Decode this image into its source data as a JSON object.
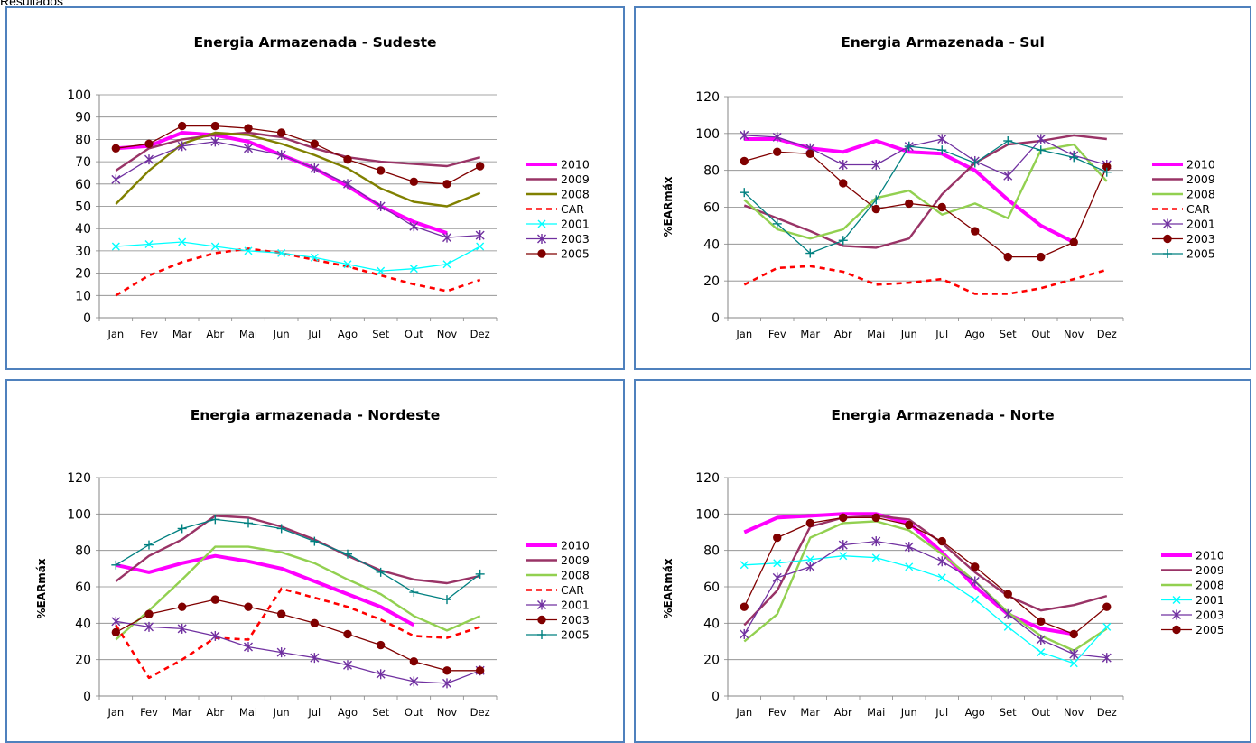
{
  "page": {
    "cut_text": "Resultados"
  },
  "chart_data": [
    {
      "type": "line",
      "title": "Energia Armazenada - Sudeste",
      "xlabel": "",
      "ylabel": "",
      "ylim": [
        0,
        100
      ],
      "yticks": [
        0,
        10,
        20,
        30,
        40,
        50,
        60,
        70,
        80,
        90,
        100
      ],
      "categories": [
        "Jan",
        "Fev",
        "Mar",
        "Abr",
        "Mai",
        "Jun",
        "Jul",
        "Ago",
        "Set",
        "Out",
        "Nov",
        "Dez"
      ],
      "grid": true,
      "legend_position": "right",
      "series": [
        {
          "name": "2010",
          "color": "#ff00ff",
          "style": "thick",
          "marker": "none",
          "values": [
            76,
            77,
            83,
            82,
            79,
            73,
            67,
            59,
            50,
            43,
            38,
            null
          ]
        },
        {
          "name": "2009",
          "color": "#993366",
          "style": "solid",
          "marker": "none",
          "values": [
            66,
            76,
            80,
            82,
            83,
            81,
            76,
            72,
            70,
            69,
            68,
            72
          ]
        },
        {
          "name": "2008",
          "color": "#808000",
          "style": "solid",
          "marker": "none",
          "values": [
            51,
            66,
            78,
            83,
            82,
            78,
            73,
            67,
            58,
            52,
            50,
            56
          ]
        },
        {
          "name": "CAR",
          "color": "#ff0000",
          "style": "dash",
          "marker": "none",
          "values": [
            10,
            19,
            25,
            29,
            31,
            29,
            26,
            23,
            19,
            15,
            12,
            17
          ]
        },
        {
          "name": "2001",
          "color": "#00ffff",
          "style": "thin",
          "marker": "x",
          "values": [
            32,
            33,
            34,
            32,
            30,
            29,
            27,
            24,
            21,
            22,
            24,
            32
          ]
        },
        {
          "name": "2003",
          "color": "#7030a0",
          "style": "thin",
          "marker": "star",
          "values": [
            62,
            71,
            77,
            79,
            76,
            73,
            67,
            60,
            50,
            41,
            36,
            37
          ]
        },
        {
          "name": "2005",
          "color": "#800000",
          "style": "thin",
          "marker": "dot",
          "values": [
            76,
            78,
            86,
            86,
            85,
            83,
            78,
            71,
            66,
            61,
            60,
            68
          ]
        }
      ]
    },
    {
      "type": "line",
      "title": "Energia Armazenada - Sul",
      "xlabel": "",
      "ylabel": "%EARmáx",
      "ylim": [
        0,
        120
      ],
      "yticks": [
        0,
        20,
        40,
        60,
        80,
        100,
        120
      ],
      "categories": [
        "Jan",
        "Fev",
        "Mar",
        "Abr",
        "Mai",
        "Jun",
        "Jul",
        "Ago",
        "Set",
        "Out",
        "Nov",
        "Dez"
      ],
      "grid": true,
      "legend_position": "right",
      "series": [
        {
          "name": "2010",
          "color": "#ff00ff",
          "style": "thick",
          "marker": "none",
          "values": [
            97,
            97,
            92,
            90,
            96,
            90,
            89,
            80,
            64,
            50,
            41,
            null
          ]
        },
        {
          "name": "2009",
          "color": "#993366",
          "style": "solid",
          "marker": "none",
          "values": [
            61,
            54,
            47,
            39,
            38,
            43,
            67,
            84,
            94,
            96,
            99,
            97
          ]
        },
        {
          "name": "2008",
          "color": "#92d050",
          "style": "solid",
          "marker": "none",
          "values": [
            64,
            48,
            43,
            48,
            65,
            69,
            56,
            62,
            54,
            91,
            94,
            74
          ]
        },
        {
          "name": "CAR",
          "color": "#ff0000",
          "style": "dash",
          "marker": "none",
          "values": [
            18,
            27,
            28,
            25,
            18,
            19,
            21,
            13,
            13,
            16,
            21,
            26
          ]
        },
        {
          "name": "2001",
          "color": "#7030a0",
          "style": "thin",
          "marker": "star",
          "values": [
            99,
            98,
            92,
            83,
            83,
            93,
            97,
            85,
            77,
            97,
            88,
            83
          ]
        },
        {
          "name": "2003",
          "color": "#800000",
          "style": "thin",
          "marker": "dot",
          "values": [
            85,
            90,
            89,
            73,
            59,
            62,
            60,
            47,
            33,
            33,
            41,
            82
          ]
        },
        {
          "name": "2005",
          "color": "#008080",
          "style": "thin",
          "marker": "plus",
          "values": [
            68,
            51,
            35,
            42,
            64,
            93,
            91,
            84,
            96,
            91,
            87,
            79
          ]
        }
      ]
    },
    {
      "type": "line",
      "title": "Energia armazenada - Nordeste",
      "xlabel": "",
      "ylabel": "%EARmáx",
      "ylim": [
        0,
        120
      ],
      "yticks": [
        0,
        20,
        40,
        60,
        80,
        100,
        120
      ],
      "categories": [
        "Jan",
        "Fev",
        "Mar",
        "Abr",
        "Mai",
        "Jun",
        "Jul",
        "Ago",
        "Set",
        "Out",
        "Nov",
        "Dez"
      ],
      "grid": true,
      "legend_position": "right",
      "series": [
        {
          "name": "2010",
          "color": "#ff00ff",
          "style": "thick",
          "marker": "none",
          "values": [
            72,
            68,
            73,
            77,
            74,
            70,
            63,
            56,
            49,
            39,
            null,
            null
          ]
        },
        {
          "name": "2009",
          "color": "#993366",
          "style": "solid",
          "marker": "none",
          "values": [
            63,
            77,
            86,
            99,
            98,
            93,
            86,
            77,
            69,
            64,
            62,
            66
          ]
        },
        {
          "name": "2008",
          "color": "#92d050",
          "style": "solid",
          "marker": "none",
          "values": [
            31,
            47,
            64,
            82,
            82,
            79,
            73,
            64,
            56,
            44,
            36,
            44
          ]
        },
        {
          "name": "CAR",
          "color": "#ff0000",
          "style": "dash",
          "marker": "none",
          "values": [
            39,
            10,
            20,
            32,
            31,
            59,
            54,
            49,
            42,
            33,
            32,
            38
          ]
        },
        {
          "name": "2001",
          "color": "#7030a0",
          "style": "thin",
          "marker": "star",
          "values": [
            41,
            38,
            37,
            33,
            27,
            24,
            21,
            17,
            12,
            8,
            7,
            14
          ]
        },
        {
          "name": "2003",
          "color": "#800000",
          "style": "thin",
          "marker": "dot",
          "values": [
            35,
            45,
            49,
            53,
            49,
            45,
            40,
            34,
            28,
            19,
            14,
            14
          ]
        },
        {
          "name": "2005",
          "color": "#008080",
          "style": "thin",
          "marker": "plus",
          "values": [
            72,
            83,
            92,
            97,
            95,
            92,
            85,
            78,
            68,
            57,
            53,
            67
          ]
        }
      ]
    },
    {
      "type": "line",
      "title": "Energia Armazenada - Norte",
      "xlabel": "",
      "ylabel": "%EARmáx",
      "ylim": [
        0,
        120
      ],
      "yticks": [
        0,
        20,
        40,
        60,
        80,
        100,
        120
      ],
      "categories": [
        "Jan",
        "Fev",
        "Mar",
        "Abr",
        "Mai",
        "Jun",
        "Jul",
        "Ago",
        "Set",
        "Out",
        "Nov",
        "Dez"
      ],
      "grid": true,
      "legend_position": "right",
      "series": [
        {
          "name": "2010",
          "color": "#ff00ff",
          "style": "thick",
          "marker": "none",
          "values": [
            90,
            98,
            99,
            100,
            100,
            95,
            79,
            60,
            45,
            37,
            34,
            null
          ]
        },
        {
          "name": "2009",
          "color": "#993366",
          "style": "solid",
          "marker": "none",
          "values": [
            39,
            58,
            93,
            98,
            99,
            97,
            84,
            68,
            55,
            47,
            50,
            55
          ]
        },
        {
          "name": "2008",
          "color": "#92d050",
          "style": "solid",
          "marker": "none",
          "values": [
            30,
            45,
            87,
            95,
            96,
            91,
            78,
            63,
            46,
            33,
            25,
            37
          ]
        },
        {
          "name": "2001",
          "color": "#00ffff",
          "style": "thin",
          "marker": "x",
          "values": [
            72,
            73,
            75,
            77,
            76,
            71,
            65,
            53,
            38,
            24,
            18,
            38
          ]
        },
        {
          "name": "2003",
          "color": "#7030a0",
          "style": "thin",
          "marker": "star",
          "values": [
            34,
            65,
            71,
            83,
            85,
            82,
            74,
            63,
            45,
            31,
            23,
            21
          ]
        },
        {
          "name": "2005",
          "color": "#800000",
          "style": "thin",
          "marker": "dot",
          "values": [
            49,
            87,
            95,
            98,
            98,
            94,
            85,
            71,
            56,
            41,
            34,
            49
          ]
        }
      ]
    }
  ]
}
